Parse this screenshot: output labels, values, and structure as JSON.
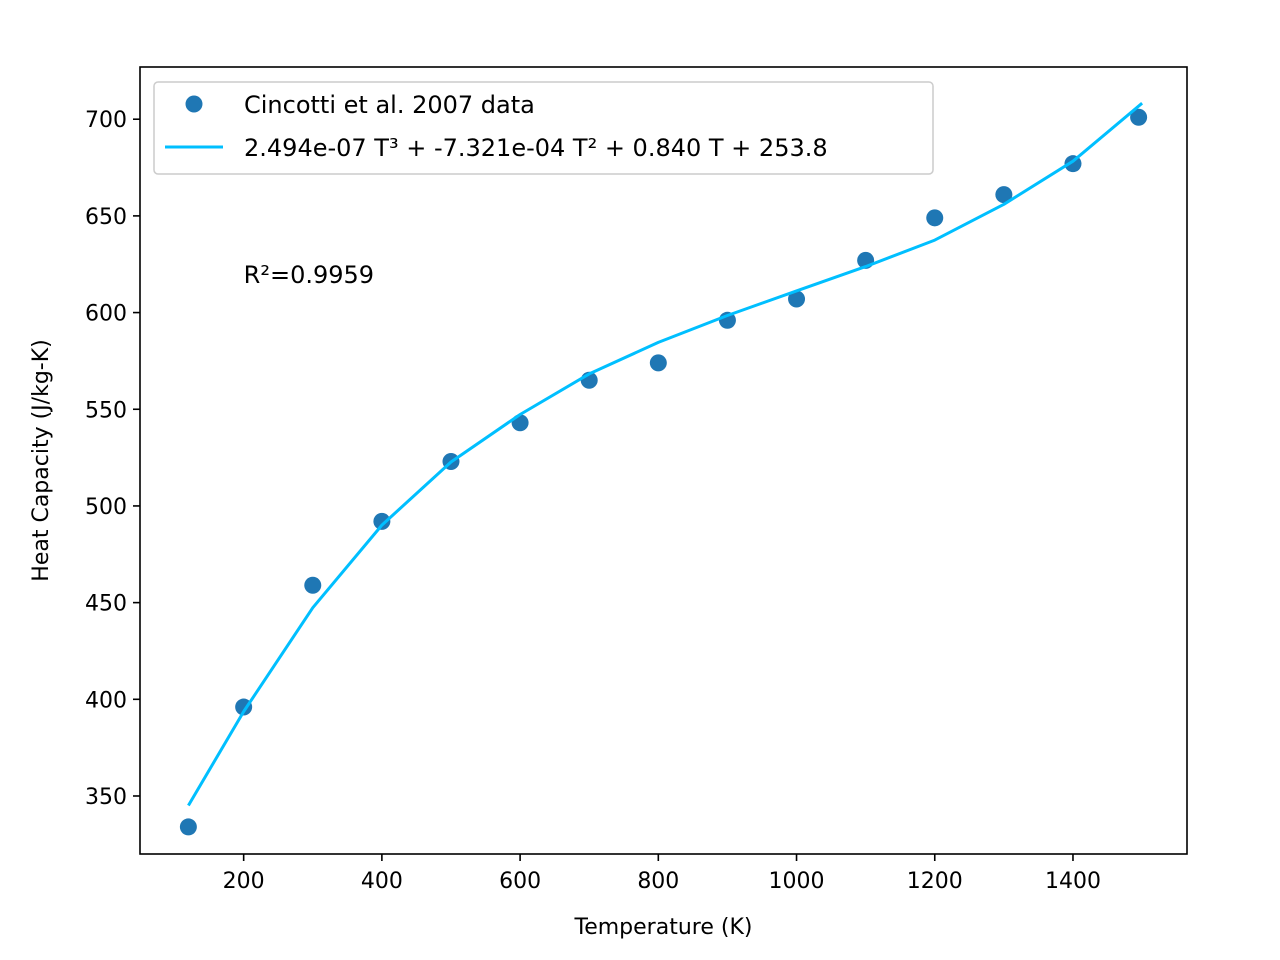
{
  "chart_data": {
    "type": "scatter",
    "xlabel": "Temperature (K)",
    "ylabel": "Heat Capacity (J/kg-K)",
    "xlim": [
      50,
      1565
    ],
    "ylim": [
      320,
      727
    ],
    "xticks": [
      200,
      400,
      600,
      800,
      1000,
      1200,
      1400
    ],
    "yticks": [
      350,
      400,
      450,
      500,
      550,
      600,
      650,
      700
    ],
    "grid": false,
    "legend_position": "upper-left",
    "series": [
      {
        "name": "Cincotti et al. 2007 data",
        "kind": "scatter",
        "color": "#1f77b4",
        "x": [
          120,
          200,
          300,
          400,
          500,
          600,
          700,
          800,
          900,
          1000,
          1100,
          1200,
          1300,
          1400,
          1495
        ],
        "y": [
          334,
          396,
          459,
          492,
          523,
          543,
          565,
          574,
          596,
          607,
          627,
          649,
          661,
          677,
          701
        ]
      },
      {
        "name": "2.494e-07 T³ + -7.321e-04 T² + 0.840 T + 253.8",
        "kind": "line",
        "color": "#00bfff",
        "x": [
          120,
          200,
          300,
          400,
          500,
          600,
          700,
          800,
          900,
          1000,
          1100,
          1200,
          1300,
          1400,
          1500
        ],
        "y": [
          345.1,
          393.7,
          447.4,
          490.1,
          522.7,
          547.3,
          568.3,
          584.6,
          598.5,
          611.2,
          623.8,
          637.5,
          656.0,
          678.3,
          708.3
        ]
      }
    ],
    "legend": {
      "scatter_label": "Cincotti et al. 2007 data",
      "line_label": "2.494e-07 T³ + -7.321e-04 T² + 0.840 T + 253.8"
    },
    "annotation": {
      "text": "R²=0.9959",
      "x": 200,
      "y": 620
    }
  }
}
